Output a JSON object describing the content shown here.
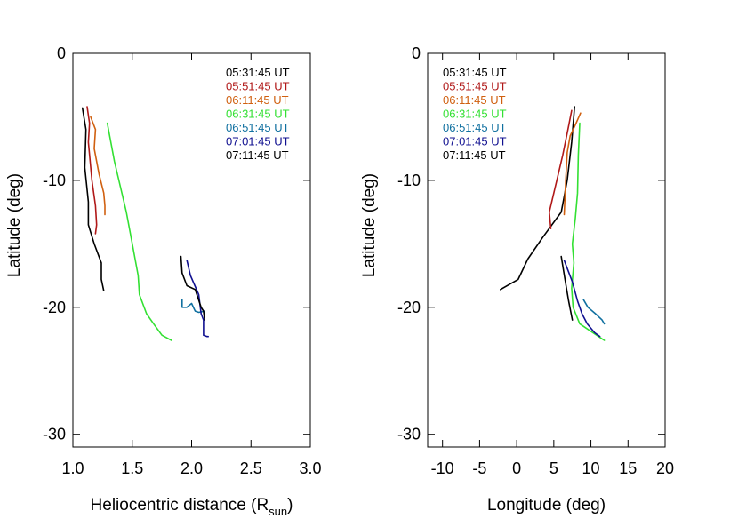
{
  "chart_data": [
    {
      "type": "line",
      "xlabel": "Heliocentric distance (R",
      "xlabel_sub": "sun",
      "xlabel_end": ")",
      "ylabel": "Latitude (deg)",
      "xlim": [
        1.0,
        3.0
      ],
      "ylim": [
        -31,
        0
      ],
      "x_ticks": [
        1.0,
        1.5,
        2.0,
        2.5,
        3.0
      ],
      "x_tick_labels": [
        "1.0",
        "1.5",
        "2.0",
        "2.5",
        "3.0"
      ],
      "y_ticks": [
        0,
        -10,
        -20,
        -30
      ],
      "y_tick_labels": [
        "0",
        "-10",
        "-20",
        "-30"
      ],
      "legend_position": "top-right",
      "series": [
        {
          "name": "05:31:45 UT",
          "color": "#000000",
          "x": [
            1.08,
            1.11,
            1.1,
            1.13,
            1.13,
            1.18,
            1.24,
            1.24,
            1.26
          ],
          "y": [
            -4.3,
            -6.0,
            -9.0,
            -11.7,
            -13.5,
            -15.0,
            -16.5,
            -17.8,
            -18.7
          ]
        },
        {
          "name": "05:51:45 UT",
          "color": "#b01818",
          "x": [
            1.12,
            1.14,
            1.13,
            1.16,
            1.19,
            1.2,
            1.19
          ],
          "y": [
            -4.2,
            -5.5,
            -7.0,
            -10.0,
            -12.0,
            -13.5,
            -14.2
          ]
        },
        {
          "name": "06:11:45 UT",
          "color": "#d06010",
          "x": [
            1.15,
            1.19,
            1.18,
            1.22,
            1.26,
            1.27,
            1.27
          ],
          "y": [
            -5.0,
            -6.0,
            -7.5,
            -9.5,
            -11.0,
            -12.0,
            -12.7
          ]
        },
        {
          "name": "06:31:45 UT",
          "color": "#33e033",
          "x": [
            1.29,
            1.35,
            1.4,
            1.45,
            1.5,
            1.55,
            1.56,
            1.62,
            1.68,
            1.75,
            1.83
          ],
          "y": [
            -5.5,
            -8.5,
            -10.5,
            -12.5,
            -15.0,
            -17.5,
            -19.0,
            -20.5,
            -21.3,
            -22.2,
            -22.6
          ]
        },
        {
          "name": "06:51:45 UT",
          "color": "#1070a0",
          "x": [
            1.92,
            1.92,
            1.96,
            2.0,
            2.03,
            2.06,
            2.11,
            2.11
          ],
          "y": [
            -19.4,
            -20.0,
            -20.0,
            -19.7,
            -20.3,
            -20.4,
            -20.3,
            -21.0
          ]
        },
        {
          "name": "07:01:45 UT",
          "color": "#101090",
          "x": [
            1.96,
            1.99,
            2.06,
            2.08,
            2.1,
            2.1,
            2.13,
            2.14
          ],
          "y": [
            -16.3,
            -17.5,
            -19.0,
            -20.5,
            -21.0,
            -22.2,
            -22.3,
            -22.3
          ]
        },
        {
          "name": "07:11:45 UT",
          "color": "#000000",
          "x": [
            1.91,
            1.92,
            1.96,
            2.03,
            2.08,
            2.1,
            2.11
          ],
          "y": [
            -16.0,
            -17.3,
            -18.3,
            -18.6,
            -20.0,
            -20.3,
            -21.0
          ]
        }
      ]
    },
    {
      "type": "line",
      "xlabel": "Longitude (deg)",
      "ylabel": "Latitude (deg)",
      "xlim": [
        -12,
        20
      ],
      "ylim": [
        -31,
        0
      ],
      "x_ticks": [
        -10,
        -5,
        0,
        5,
        10,
        15,
        20
      ],
      "x_tick_labels": [
        "-10",
        "-5",
        "0",
        "5",
        "10",
        "15",
        "20"
      ],
      "y_ticks": [
        0,
        -10,
        -20,
        -30
      ],
      "y_tick_labels": [
        "0",
        "-10",
        "-20",
        "-30"
      ],
      "legend_position": "top-left",
      "series": [
        {
          "name": "05:31:45 UT",
          "color": "#000000",
          "x": [
            -2.2,
            0.2,
            1.5,
            3.5,
            6.0,
            6.8,
            7.4,
            7.8
          ],
          "y": [
            -18.6,
            -17.8,
            -16.2,
            -14.5,
            -12.5,
            -10.0,
            -7.0,
            -4.2
          ]
        },
        {
          "name": "05:51:45 UT",
          "color": "#b01818",
          "x": [
            4.6,
            4.4,
            5.4,
            6.2,
            6.9,
            7.4
          ],
          "y": [
            -13.8,
            -12.5,
            -10.0,
            -8.0,
            -6.0,
            -4.5
          ]
        },
        {
          "name": "06:11:45 UT",
          "color": "#d06010",
          "x": [
            6.4,
            6.6,
            6.8,
            7.2,
            8.0,
            8.6
          ],
          "y": [
            -12.7,
            -10.0,
            -7.8,
            -6.5,
            -5.5,
            -4.7
          ]
        },
        {
          "name": "06:31:45 UT",
          "color": "#33e033",
          "x": [
            8.5,
            8.3,
            8.2,
            7.9,
            7.5,
            7.7,
            7.4,
            7.6,
            8.5,
            11.8
          ],
          "y": [
            -5.5,
            -8.0,
            -11.0,
            -13.0,
            -15.0,
            -16.5,
            -18.5,
            -20.0,
            -21.3,
            -22.6
          ]
        },
        {
          "name": "06:51:45 UT",
          "color": "#1070a0",
          "x": [
            9.0,
            9.6,
            10.6,
            11.5,
            11.8
          ],
          "y": [
            -19.4,
            -20.0,
            -20.5,
            -21.0,
            -21.3
          ]
        },
        {
          "name": "07:01:45 UT",
          "color": "#101090",
          "x": [
            6.4,
            7.5,
            8.2,
            8.8,
            9.5,
            10.5,
            11.2
          ],
          "y": [
            -16.3,
            -18.0,
            -19.5,
            -20.5,
            -21.3,
            -22.0,
            -22.3
          ]
        },
        {
          "name": "07:11:45 UT",
          "color": "#000000",
          "x": [
            6.0,
            6.5,
            7.0,
            7.5
          ],
          "y": [
            -16.0,
            -17.8,
            -19.5,
            -21.0
          ]
        }
      ]
    }
  ]
}
